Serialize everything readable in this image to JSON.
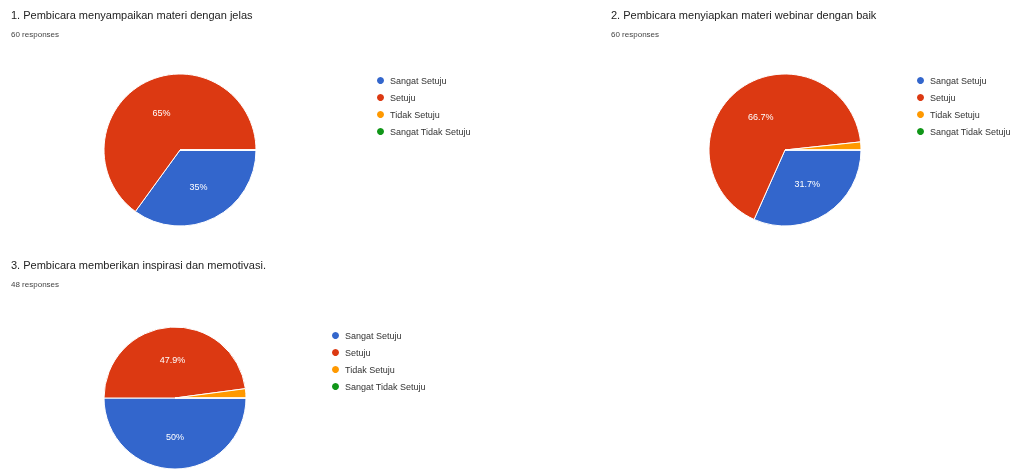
{
  "chart_data": [
    {
      "type": "pie",
      "title": "1. Pembicara menyampaikan materi dengan jelas",
      "subtitle": "60 responses",
      "categories": [
        "Sangat Setuju",
        "Setuju",
        "Tidak Setuju",
        "Sangat Tidak Setuju"
      ],
      "values": [
        35,
        65,
        0,
        0
      ],
      "colors": [
        "#3366cc",
        "#dc3912",
        "#ff9900",
        "#109618"
      ],
      "value_labels": [
        "35%",
        "65%",
        null,
        null
      ],
      "legend": "right"
    },
    {
      "type": "pie",
      "title": "2. Pembicara menyiapkan materi webinar dengan baik",
      "subtitle": "60 responses",
      "categories": [
        "Sangat Setuju",
        "Setuju",
        "Tidak Setuju",
        "Sangat Tidak Setuju"
      ],
      "values": [
        31.7,
        66.7,
        1.7,
        0
      ],
      "colors": [
        "#3366cc",
        "#dc3912",
        "#ff9900",
        "#109618"
      ],
      "value_labels": [
        "31.7%",
        "66.7%",
        null,
        null
      ],
      "legend": "right"
    },
    {
      "type": "pie",
      "title": "3. Pembicara memberikan inspirasi dan memotivasi.",
      "subtitle": "48 responses",
      "categories": [
        "Sangat Setuju",
        "Setuju",
        "Tidak Setuju",
        "Sangat Tidak Setuju"
      ],
      "values": [
        50,
        47.9,
        2.1,
        0
      ],
      "colors": [
        "#3366cc",
        "#dc3912",
        "#ff9900",
        "#109618"
      ],
      "value_labels": [
        "50%",
        "47.9%",
        null,
        null
      ],
      "legend": "right"
    }
  ]
}
